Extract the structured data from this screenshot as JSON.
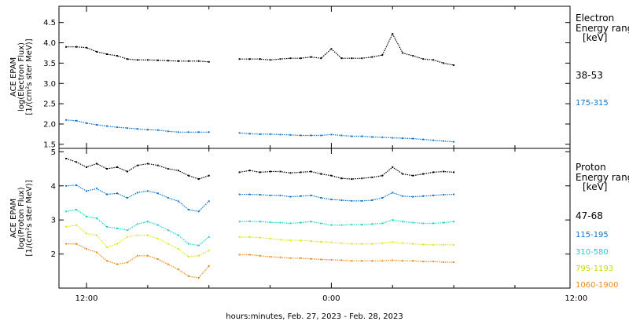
{
  "chart_data": [
    {
      "type": "scatter",
      "panel": "electron",
      "ylabel_lines": [
        "ACE EPAM",
        "log(Electron Flux)",
        "[1/(cm²s ster MeV)]"
      ],
      "ylim": [
        1.4,
        4.9
      ],
      "yticks": [
        1.5,
        2.0,
        2.5,
        3.0,
        3.5,
        4.0,
        4.5
      ],
      "ytick_labels": [
        "1.5",
        "2.0",
        "2.5",
        "3.0",
        "3.5",
        "4.0",
        "4.5"
      ],
      "legend_title_lines": [
        "Electron",
        "Energy range",
        "[keV]"
      ],
      "series": [
        {
          "name": "38-53",
          "color": "#000000",
          "x": [
            -2.0,
            -1.0,
            0.0,
            1.0,
            2.0,
            3.0,
            4.0,
            5.0,
            6.0,
            7.0,
            8.0,
            9.0,
            10.0,
            11.0,
            12.0,
            13.0,
            14.0,
            15.0,
            16.0,
            17.0,
            18.0,
            19.0,
            20.0,
            21.0,
            22.0,
            23.0,
            24.0,
            25.0,
            26.0,
            27.0,
            28.0,
            29.0,
            30.0,
            31.0,
            32.0,
            33.0,
            34.0,
            35.0,
            36.0
          ],
          "values": [
            3.9,
            3.9,
            3.88,
            3.78,
            3.72,
            3.68,
            3.6,
            3.58,
            3.58,
            3.57,
            3.56,
            3.55,
            3.55,
            3.55,
            3.53,
            null,
            null,
            3.6,
            3.6,
            3.6,
            3.58,
            3.6,
            3.62,
            3.62,
            3.65,
            3.62,
            3.85,
            3.62,
            3.62,
            3.62,
            3.65,
            3.7,
            4.22,
            3.75,
            3.68,
            3.6,
            3.58,
            3.5,
            3.45
          ]
        },
        {
          "name": "175-315",
          "color": "#0b74d0",
          "x": [
            -2.0,
            -1.0,
            0.0,
            1.0,
            2.0,
            3.0,
            4.0,
            5.0,
            6.0,
            7.0,
            8.0,
            9.0,
            10.0,
            11.0,
            12.0,
            13.0,
            14.0,
            15.0,
            16.0,
            17.0,
            18.0,
            19.0,
            20.0,
            21.0,
            22.0,
            23.0,
            24.0,
            25.0,
            26.0,
            27.0,
            28.0,
            29.0,
            30.0,
            31.0,
            32.0,
            33.0,
            34.0,
            35.0,
            36.0
          ],
          "values": [
            2.1,
            2.08,
            2.02,
            1.98,
            1.95,
            1.92,
            1.9,
            1.88,
            1.86,
            1.85,
            1.82,
            1.8,
            1.8,
            1.8,
            1.8,
            null,
            null,
            1.78,
            1.76,
            1.75,
            1.75,
            1.74,
            1.73,
            1.72,
            1.72,
            1.72,
            1.74,
            1.72,
            1.7,
            1.7,
            1.68,
            1.67,
            1.66,
            1.65,
            1.64,
            1.62,
            1.6,
            1.58,
            1.56
          ]
        }
      ]
    },
    {
      "type": "scatter",
      "panel": "proton",
      "ylabel_lines": [
        "ACE EPAM",
        "log(Proton Flux)",
        "[1/(cm²s ster MeV)]"
      ],
      "ylim": [
        1.0,
        5.1
      ],
      "yticks": [
        2,
        3,
        4,
        5
      ],
      "ytick_labels": [
        "2",
        "3",
        "4",
        "5"
      ],
      "legend_title_lines": [
        "Proton",
        "Energy range",
        "[keV]"
      ],
      "series": [
        {
          "name": "47-68",
          "color": "#000000",
          "x": [
            -2.0,
            -1.0,
            0.0,
            1.0,
            2.0,
            3.0,
            4.0,
            5.0,
            6.0,
            7.0,
            8.0,
            9.0,
            10.0,
            11.0,
            12.0,
            13.0,
            14.0,
            15.0,
            16.0,
            17.0,
            18.0,
            19.0,
            20.0,
            21.0,
            22.0,
            23.0,
            24.0,
            25.0,
            26.0,
            27.0,
            28.0,
            29.0,
            30.0,
            31.0,
            32.0,
            33.0,
            34.0,
            35.0,
            36.0
          ],
          "values": [
            4.8,
            4.7,
            4.55,
            4.65,
            4.5,
            4.55,
            4.42,
            4.6,
            4.65,
            4.6,
            4.5,
            4.45,
            4.3,
            4.2,
            4.3,
            null,
            null,
            4.4,
            4.45,
            4.4,
            4.42,
            4.42,
            4.38,
            4.4,
            4.42,
            4.35,
            4.3,
            4.22,
            4.2,
            4.22,
            4.25,
            4.3,
            4.55,
            4.35,
            4.3,
            4.35,
            4.4,
            4.42,
            4.4
          ]
        },
        {
          "name": "115-195",
          "color": "#0b74d0",
          "x": [
            -2.0,
            -1.0,
            0.0,
            1.0,
            2.0,
            3.0,
            4.0,
            5.0,
            6.0,
            7.0,
            8.0,
            9.0,
            10.0,
            11.0,
            12.0,
            13.0,
            14.0,
            15.0,
            16.0,
            17.0,
            18.0,
            19.0,
            20.0,
            21.0,
            22.0,
            23.0,
            24.0,
            25.0,
            26.0,
            27.0,
            28.0,
            29.0,
            30.0,
            31.0,
            32.0,
            33.0,
            34.0,
            35.0,
            36.0
          ],
          "values": [
            4.0,
            4.02,
            3.85,
            3.92,
            3.75,
            3.78,
            3.65,
            3.8,
            3.85,
            3.78,
            3.65,
            3.55,
            3.3,
            3.25,
            3.55,
            null,
            null,
            3.75,
            3.75,
            3.74,
            3.72,
            3.72,
            3.68,
            3.7,
            3.72,
            3.65,
            3.6,
            3.58,
            3.56,
            3.56,
            3.58,
            3.65,
            3.8,
            3.7,
            3.68,
            3.7,
            3.72,
            3.74,
            3.75
          ]
        },
        {
          "name": "310-580",
          "color": "#20d0c8",
          "x": [
            -2.0,
            -1.0,
            0.0,
            1.0,
            2.0,
            3.0,
            4.0,
            5.0,
            6.0,
            7.0,
            8.0,
            9.0,
            10.0,
            11.0,
            12.0,
            13.0,
            14.0,
            15.0,
            16.0,
            17.0,
            18.0,
            19.0,
            20.0,
            21.0,
            22.0,
            23.0,
            24.0,
            25.0,
            26.0,
            27.0,
            28.0,
            29.0,
            30.0,
            31.0,
            32.0,
            33.0,
            34.0,
            35.0,
            36.0
          ],
          "values": [
            3.25,
            3.3,
            3.1,
            3.05,
            2.8,
            2.75,
            2.7,
            2.88,
            2.95,
            2.85,
            2.7,
            2.55,
            2.3,
            2.25,
            2.5,
            null,
            null,
            2.95,
            2.96,
            2.95,
            2.93,
            2.92,
            2.9,
            2.92,
            2.95,
            2.9,
            2.85,
            2.85,
            2.86,
            2.86,
            2.88,
            2.9,
            3.0,
            2.95,
            2.92,
            2.9,
            2.9,
            2.92,
            2.95
          ]
        },
        {
          "name": "795-1193",
          "color": "#d8e820",
          "x": [
            -2.0,
            -1.0,
            0.0,
            1.0,
            2.0,
            3.0,
            4.0,
            5.0,
            6.0,
            7.0,
            8.0,
            9.0,
            10.0,
            11.0,
            12.0,
            13.0,
            14.0,
            15.0,
            16.0,
            17.0,
            18.0,
            19.0,
            20.0,
            21.0,
            22.0,
            23.0,
            24.0,
            25.0,
            26.0,
            27.0,
            28.0,
            29.0,
            30.0,
            31.0,
            32.0,
            33.0,
            34.0,
            35.0,
            36.0
          ],
          "values": [
            2.8,
            2.85,
            2.6,
            2.55,
            2.2,
            2.3,
            2.5,
            2.55,
            2.55,
            2.45,
            2.3,
            2.15,
            1.92,
            1.95,
            2.1,
            null,
            null,
            2.5,
            2.5,
            2.48,
            2.45,
            2.42,
            2.4,
            2.4,
            2.38,
            2.36,
            2.34,
            2.32,
            2.3,
            2.3,
            2.3,
            2.32,
            2.35,
            2.32,
            2.3,
            2.28,
            2.27,
            2.27,
            2.27
          ]
        },
        {
          "name": "1060-1900",
          "color": "#f08a1a",
          "x": [
            -2.0,
            -1.0,
            0.0,
            1.0,
            2.0,
            3.0,
            4.0,
            5.0,
            6.0,
            7.0,
            8.0,
            9.0,
            10.0,
            11.0,
            12.0,
            13.0,
            14.0,
            15.0,
            16.0,
            17.0,
            18.0,
            19.0,
            20.0,
            21.0,
            22.0,
            23.0,
            24.0,
            25.0,
            26.0,
            27.0,
            28.0,
            29.0,
            30.0,
            31.0,
            32.0,
            33.0,
            34.0,
            35.0,
            36.0
          ],
          "values": [
            2.3,
            2.3,
            2.15,
            2.05,
            1.8,
            1.7,
            1.75,
            1.95,
            1.95,
            1.85,
            1.7,
            1.55,
            1.35,
            1.3,
            1.65,
            null,
            null,
            1.98,
            1.98,
            1.95,
            1.92,
            1.9,
            1.88,
            1.88,
            1.86,
            1.84,
            1.83,
            1.82,
            1.8,
            1.8,
            1.8,
            1.8,
            1.82,
            1.8,
            1.8,
            1.78,
            1.78,
            1.76,
            1.76
          ]
        }
      ]
    }
  ],
  "xaxis": {
    "xlim": [
      -2.7,
      47.4
    ],
    "ticks": [
      0,
      24,
      48
    ],
    "tick_labels": [
      "12:00",
      "0:00",
      "12:00"
    ],
    "label": "hours:minutes, Feb. 27, 2023 - Feb. 28, 2023"
  }
}
